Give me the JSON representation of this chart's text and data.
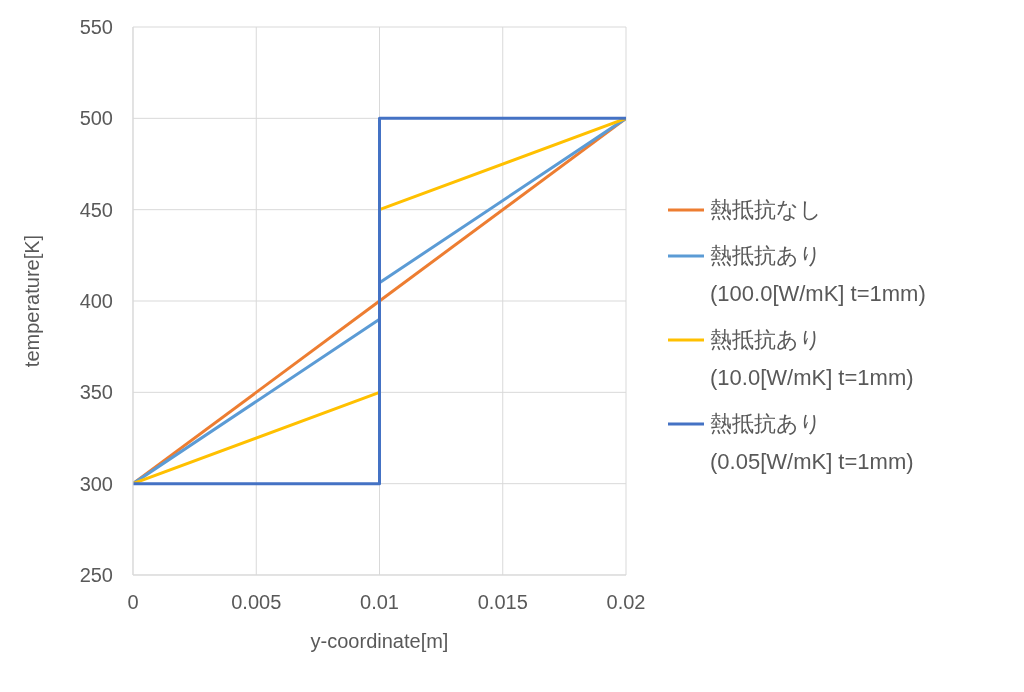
{
  "chart_data": {
    "type": "line",
    "xlabel": "y-coordinate[m]",
    "ylabel": "temperature[K]",
    "xlim": [
      0,
      0.02
    ],
    "xticks": [
      0,
      0.005,
      0.01,
      0.015,
      0.02
    ],
    "ylim": [
      250,
      550
    ],
    "yticks": [
      250,
      300,
      350,
      400,
      450,
      500,
      550
    ],
    "grid": true,
    "legend": "right",
    "marker": "none",
    "line_style": "solid",
    "series": [
      {
        "name": "熱抵抗なし",
        "color": "#ed7d31",
        "x": [
          0,
          0.01,
          0.02
        ],
        "values": [
          300,
          400,
          500
        ]
      },
      {
        "name": "熱抵抗あり\n(100.0[W/mK] t=1mm)",
        "color": "#5b9bd5",
        "x": [
          0,
          0.01,
          0.01,
          0.02
        ],
        "values": [
          300,
          390,
          410,
          500
        ]
      },
      {
        "name": "熱抵抗あり\n(10.0[W/mK] t=1mm)",
        "color": "#ffc000",
        "x": [
          0,
          0.01,
          0.01,
          0.02
        ],
        "values": [
          300,
          350,
          450,
          500
        ]
      },
      {
        "name": "熱抵抗あり\n(0.05[W/mK] t=1mm)",
        "color": "#4472c4",
        "x": [
          0,
          0.01,
          0.01,
          0.02
        ],
        "values": [
          300,
          300,
          500,
          500
        ]
      }
    ]
  }
}
